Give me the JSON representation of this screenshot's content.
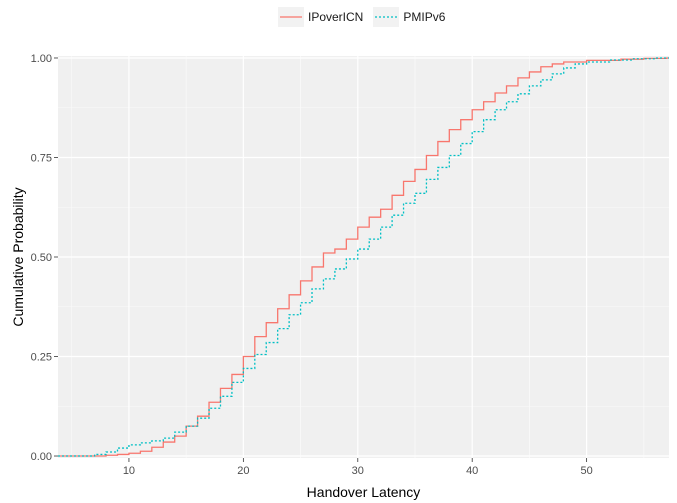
{
  "chart_data": {
    "type": "line",
    "subtype": "step-ecdf",
    "xlabel": "Handover Latency",
    "ylabel": "Cumulative Probability",
    "xlim": [
      3.8,
      57.2
    ],
    "ylim": [
      -0.005,
      1.005
    ],
    "x_ticks": [
      10,
      20,
      30,
      40,
      50
    ],
    "y_ticks": [
      0.0,
      0.25,
      0.5,
      0.75,
      1.0
    ],
    "y_tick_labels": [
      "0.00",
      "0.25",
      "0.50",
      "0.75",
      "1.00"
    ],
    "grid": true,
    "legend_position": "top",
    "series": [
      {
        "name": "IPoverICN",
        "color": "#F8766D",
        "linestyle": "solid",
        "steps": [
          [
            4,
            0.0
          ],
          [
            8,
            0.002
          ],
          [
            9,
            0.004
          ],
          [
            10,
            0.007
          ],
          [
            11,
            0.012
          ],
          [
            12,
            0.022
          ],
          [
            13,
            0.035
          ],
          [
            14,
            0.05
          ],
          [
            15,
            0.075
          ],
          [
            16,
            0.1
          ],
          [
            17,
            0.135
          ],
          [
            18,
            0.17
          ],
          [
            19,
            0.205
          ],
          [
            20,
            0.25
          ],
          [
            21,
            0.3
          ],
          [
            22,
            0.335
          ],
          [
            23,
            0.37
          ],
          [
            24,
            0.405
          ],
          [
            25,
            0.44
          ],
          [
            26,
            0.475
          ],
          [
            27,
            0.51
          ],
          [
            28,
            0.52
          ],
          [
            29,
            0.545
          ],
          [
            30,
            0.575
          ],
          [
            31,
            0.6
          ],
          [
            32,
            0.62
          ],
          [
            33,
            0.655
          ],
          [
            34,
            0.69
          ],
          [
            35,
            0.72
          ],
          [
            36,
            0.755
          ],
          [
            37,
            0.79
          ],
          [
            38,
            0.82
          ],
          [
            39,
            0.845
          ],
          [
            40,
            0.87
          ],
          [
            41,
            0.89
          ],
          [
            42,
            0.912
          ],
          [
            43,
            0.93
          ],
          [
            44,
            0.95
          ],
          [
            45,
            0.965
          ],
          [
            46,
            0.978
          ],
          [
            47,
            0.985
          ],
          [
            48,
            0.99
          ],
          [
            50,
            0.994
          ],
          [
            53,
            0.997
          ],
          [
            55,
            0.999
          ],
          [
            57,
            1.0
          ]
        ]
      },
      {
        "name": "PMIPv6",
        "color": "#00BFC4",
        "linestyle": "dotted",
        "steps": [
          [
            4,
            0.0
          ],
          [
            7,
            0.004
          ],
          [
            8,
            0.01
          ],
          [
            9,
            0.02
          ],
          [
            10,
            0.028
          ],
          [
            11,
            0.033
          ],
          [
            12,
            0.038
          ],
          [
            13,
            0.045
          ],
          [
            14,
            0.06
          ],
          [
            15,
            0.075
          ],
          [
            16,
            0.095
          ],
          [
            17,
            0.12
          ],
          [
            18,
            0.15
          ],
          [
            19,
            0.185
          ],
          [
            20,
            0.22
          ],
          [
            21,
            0.255
          ],
          [
            22,
            0.285
          ],
          [
            23,
            0.32
          ],
          [
            24,
            0.355
          ],
          [
            25,
            0.385
          ],
          [
            26,
            0.42
          ],
          [
            27,
            0.445
          ],
          [
            28,
            0.47
          ],
          [
            29,
            0.495
          ],
          [
            30,
            0.52
          ],
          [
            31,
            0.545
          ],
          [
            32,
            0.575
          ],
          [
            33,
            0.605
          ],
          [
            34,
            0.635
          ],
          [
            35,
            0.66
          ],
          [
            36,
            0.695
          ],
          [
            37,
            0.725
          ],
          [
            38,
            0.755
          ],
          [
            39,
            0.785
          ],
          [
            40,
            0.815
          ],
          [
            41,
            0.845
          ],
          [
            42,
            0.87
          ],
          [
            43,
            0.89
          ],
          [
            44,
            0.91
          ],
          [
            45,
            0.93
          ],
          [
            46,
            0.945
          ],
          [
            47,
            0.96
          ],
          [
            48,
            0.975
          ],
          [
            49,
            0.985
          ],
          [
            50,
            0.99
          ],
          [
            52,
            0.995
          ],
          [
            54,
            0.998
          ],
          [
            56,
            1.0
          ]
        ]
      }
    ]
  }
}
